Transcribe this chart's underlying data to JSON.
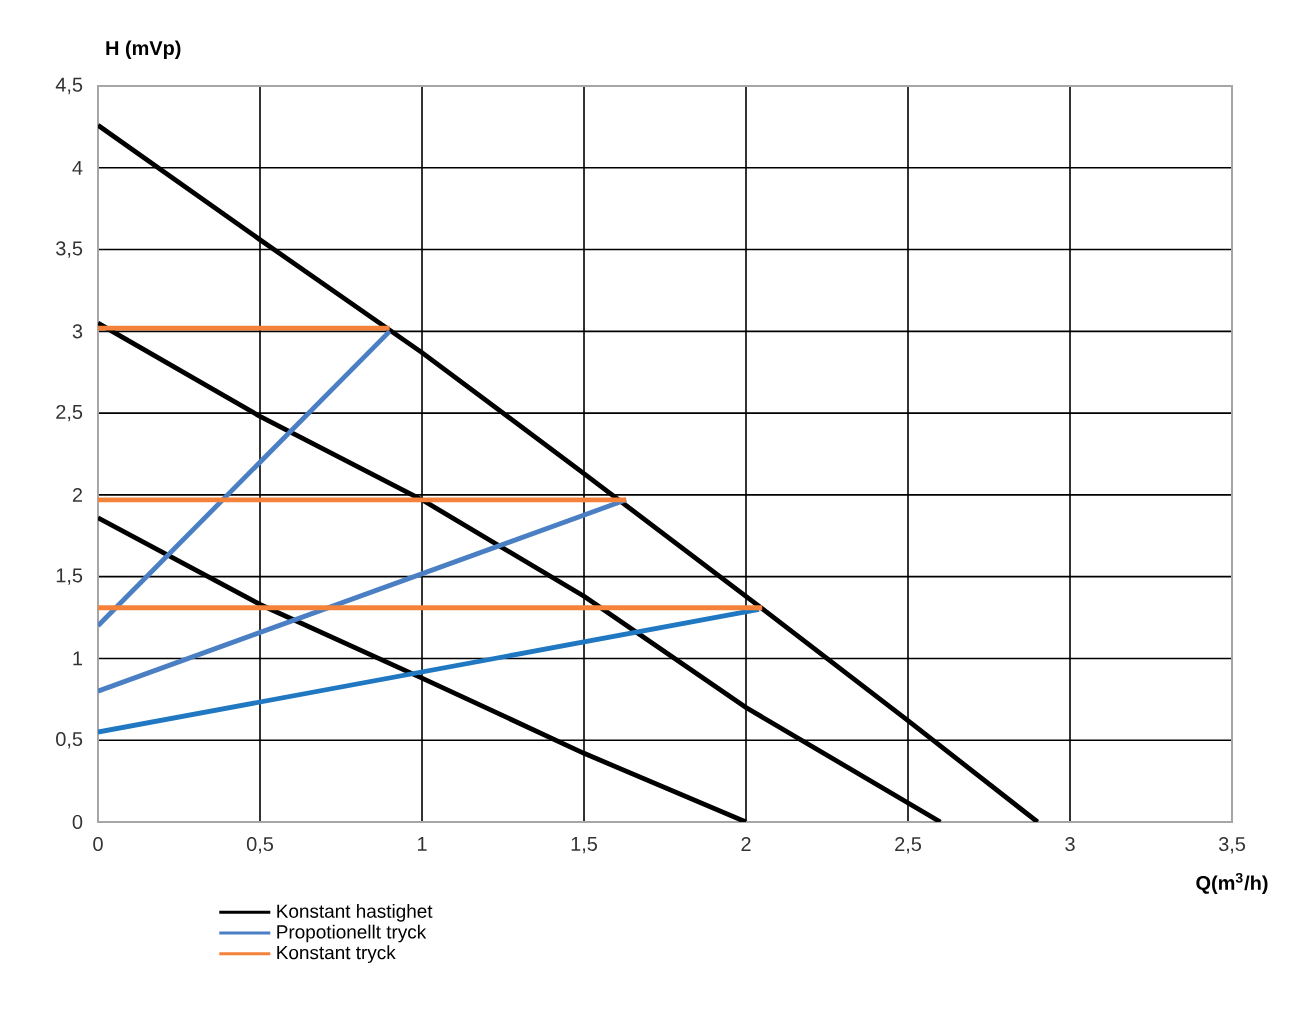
{
  "chart_data": {
    "type": "line",
    "xlabel": "Q(m$^{3}$/h)",
    "ylabel": "H (mVp)",
    "xlim": [
      0,
      3.5
    ],
    "ylim": [
      0,
      4.5
    ],
    "xticks": [
      0,
      {
        "value": 0.5,
        "label": "0,5"
      },
      1,
      {
        "value": 1.5,
        "label": "1,5"
      },
      2,
      {
        "value": 2.5,
        "label": "2,5"
      },
      3,
      {
        "value": 3.5,
        "label": "3,5"
      }
    ],
    "yticks": [
      0,
      {
        "value": 0.5,
        "label": "0,5"
      },
      1,
      {
        "value": 1.5,
        "label": "1,5"
      },
      2,
      {
        "value": 2.5,
        "label": "2,5"
      },
      3,
      {
        "value": 3.5,
        "label": "3,5"
      },
      4,
      {
        "value": 4.5,
        "label": "4,5"
      }
    ],
    "grid": true,
    "legend": "bottom left",
    "marker": "none",
    "line_style": "solid",
    "series": [
      {
        "name": "Konstant hastighet",
        "color": "#000000",
        "x": [
          0,
          0.5,
          1,
          1.5,
          2,
          2.5,
          2.9
        ],
        "values": [
          4.26,
          3.56,
          2.87,
          2.13,
          1.38,
          0.62,
          0
        ]
      },
      {
        "color": "#000000",
        "x": [
          0,
          0.5,
          1,
          1.5,
          2,
          2.6
        ],
        "values": [
          3.05,
          2.48,
          1.97,
          1.38,
          0.7,
          0
        ]
      },
      {
        "color": "#000000",
        "x": [
          0,
          0.5,
          1,
          1.5,
          2
        ],
        "values": [
          1.86,
          1.33,
          0.88,
          0.42,
          0
        ]
      },
      {
        "name": "Propotionellt tryck",
        "color": "#4a7fc4",
        "x": [
          0,
          0.9
        ],
        "values": [
          1.2,
          3.0
        ]
      },
      {
        "color": "#4a7fc4",
        "x": [
          0,
          1.63
        ],
        "values": [
          0.8,
          1.97
        ]
      },
      {
        "color": "#1f78c1",
        "x": [
          0,
          2.04
        ],
        "values": [
          0.55,
          1.3
        ]
      },
      {
        "name": "Konstant tryck",
        "color": "#f4823a",
        "x": [
          0,
          0.9
        ],
        "values": [
          3.02,
          3.02
        ]
      },
      {
        "color": "#f4823a",
        "x": [
          0,
          1.63
        ],
        "values": [
          1.97,
          1.97
        ]
      },
      {
        "color": "#f4823a",
        "x": [
          0,
          2.05
        ],
        "values": [
          1.31,
          1.31
        ]
      }
    ]
  }
}
